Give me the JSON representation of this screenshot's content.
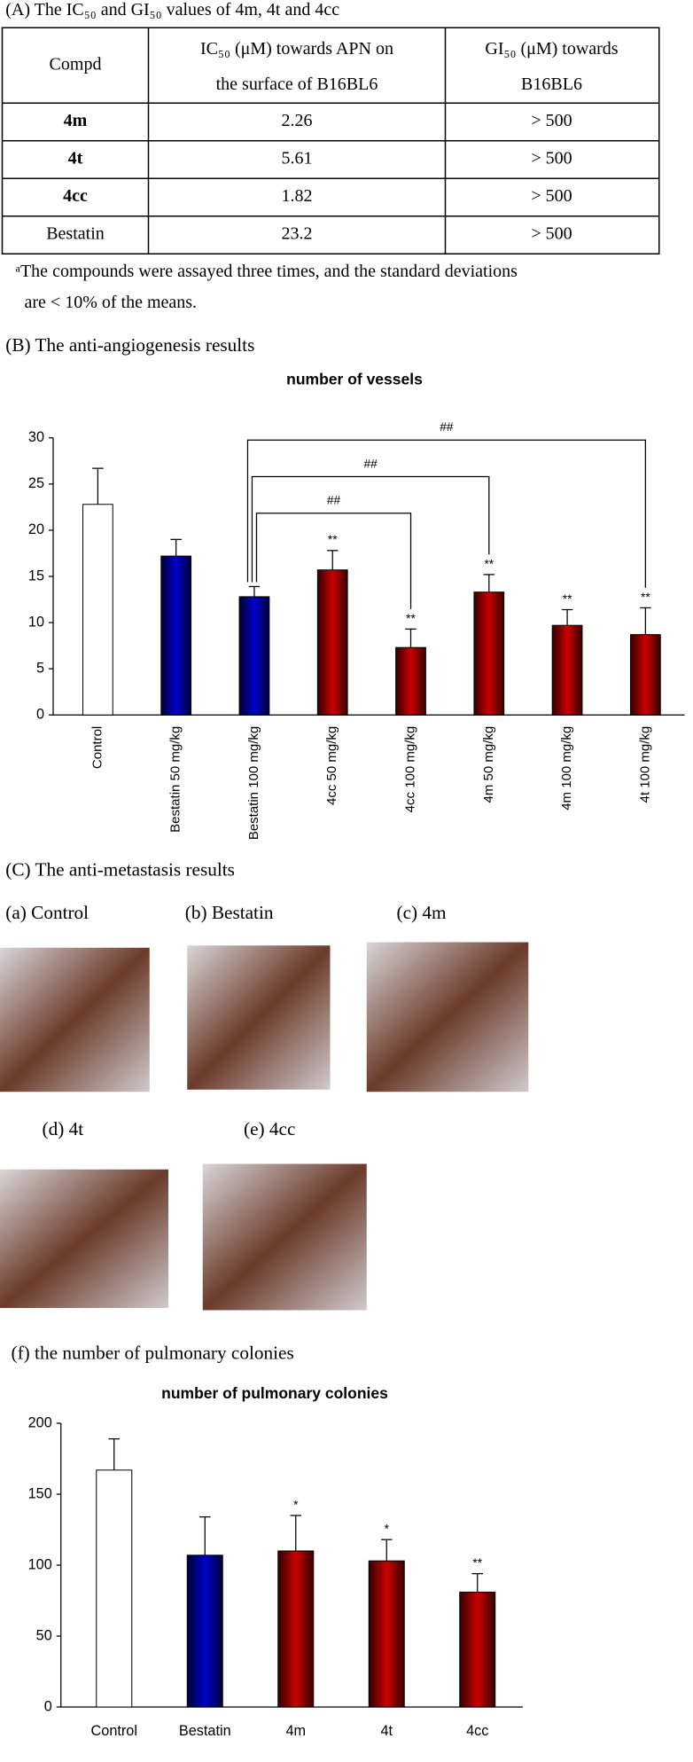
{
  "panel_a": {
    "caption": "(A) The IC₅₀ and GI₅₀ values of 4m, 4t and 4cc",
    "table": {
      "header": [
        "Compd",
        "IC₅₀ (μM) towards APN on",
        "the surface of B16BL6",
        "GI₅₀ (μM) towards",
        "B16BL6"
      ],
      "rows": [
        [
          "4m",
          "2.26",
          "> 500"
        ],
        [
          "4t",
          "5.61",
          "> 500"
        ],
        [
          "4cc",
          "1.82",
          "> 500"
        ],
        [
          "Bestatin",
          "23.2",
          "> 500"
        ]
      ]
    },
    "footnote": [
      "ᵃThe compounds were assayed three times, and the standard deviations",
      "are < 10% of the means."
    ]
  },
  "panel_b": {
    "caption": "(B) The anti-angiogenesis results"
  },
  "panel_c": {
    "caption": "(C) The anti-metastasis results",
    "photos": [
      "(a) Control",
      "(b) Bestatin",
      "(c) 4m",
      "(d) 4t",
      "(e) 4cc"
    ]
  },
  "panel_f": {
    "caption": "(f) the number of pulmonary colonies"
  },
  "chart_data": [
    {
      "type": "bar",
      "title": "number of vessels",
      "categories": [
        "Control",
        "Bestatin 50 mg/kg",
        "Bestatin 100 mg/kg",
        "4cc 50 mg/kg",
        "4cc 100 mg/kg",
        "4m 50 mg/kg",
        "4m 100 mg/kg",
        "4t 100 mg/kg"
      ],
      "values": [
        22.8,
        17.2,
        12.8,
        15.7,
        7.3,
        13.3,
        9.7,
        8.7
      ],
      "errors": [
        3.9,
        1.8,
        1.1,
        2.1,
        2.0,
        1.9,
        1.7,
        2.9
      ],
      "colors": [
        "#ffffff",
        "#0000cc",
        "#0000cc",
        "#cc0000",
        "#cc0000",
        "#cc0000",
        "#cc0000",
        "#cc0000"
      ],
      "significance": [
        null,
        null,
        null,
        "**",
        "**",
        "**",
        "**",
        "**"
      ],
      "comparisons": [
        {
          "label": "##",
          "from": "Bestatin 100 mg/kg",
          "to": "4cc 100 mg/kg"
        },
        {
          "label": "##",
          "from": "Bestatin 100 mg/kg",
          "to": "4m 50 mg/kg"
        },
        {
          "label": "##",
          "from": "Bestatin 100 mg/kg",
          "to": "4t 100 mg/kg"
        }
      ],
      "ylim": [
        0,
        30
      ],
      "yticks": [
        0,
        5,
        10,
        15,
        20,
        25,
        30
      ]
    },
    {
      "type": "bar",
      "title": "number of  pulmonary colonies",
      "categories": [
        "Control",
        "Bestatin",
        "4m",
        "4t",
        "4cc"
      ],
      "values": [
        167,
        107,
        110,
        103,
        81
      ],
      "errors": [
        22,
        27,
        25,
        15,
        13
      ],
      "colors": [
        "#ffffff",
        "#0000cc",
        "#cc0000",
        "#cc0000",
        "#cc0000"
      ],
      "significance": [
        null,
        null,
        "*",
        "*",
        "**"
      ],
      "ylim": [
        0,
        200
      ],
      "yticks": [
        0,
        50,
        100,
        150,
        200
      ]
    }
  ]
}
